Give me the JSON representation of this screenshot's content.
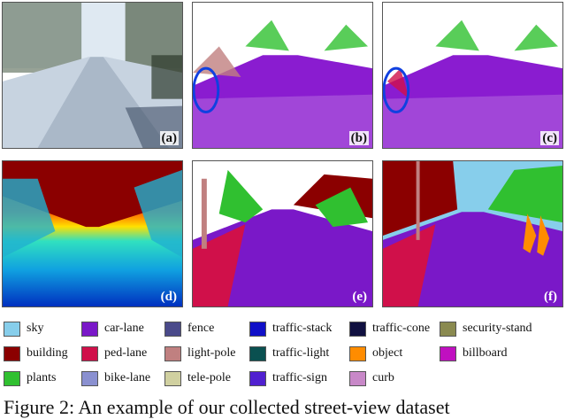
{
  "panels": [
    {
      "id": "a",
      "tag": "(a)"
    },
    {
      "id": "b",
      "tag": "(b)"
    },
    {
      "id": "c",
      "tag": "(c)"
    },
    {
      "id": "d",
      "tag": "(d)"
    },
    {
      "id": "e",
      "tag": "(e)"
    },
    {
      "id": "f",
      "tag": "(f)"
    }
  ],
  "legend": {
    "items": [
      {
        "label": "sky",
        "color": "#87ceeb"
      },
      {
        "label": "car-lane",
        "color": "#7a18c8"
      },
      {
        "label": "fence",
        "color": "#4a4a8a"
      },
      {
        "label": "traffic-stack",
        "color": "#1010c8"
      },
      {
        "label": "traffic-cone",
        "color": "#101040"
      },
      {
        "label": "security-stand",
        "color": "#8a8a50"
      },
      {
        "label": "building",
        "color": "#8b0000"
      },
      {
        "label": "ped-lane",
        "color": "#d0104a"
      },
      {
        "label": "light-pole",
        "color": "#c08080"
      },
      {
        "label": "traffic-light",
        "color": "#0a5050"
      },
      {
        "label": "object",
        "color": "#ff8c00"
      },
      {
        "label": "billboard",
        "color": "#c010c0"
      },
      {
        "label": "plants",
        "color": "#30c030"
      },
      {
        "label": "bike-lane",
        "color": "#8a90d0"
      },
      {
        "label": "tele-pole",
        "color": "#d0d0a0"
      },
      {
        "label": "traffic-sign",
        "color": "#5020d0"
      },
      {
        "label": "curb",
        "color": "#c888c8"
      }
    ]
  },
  "caption": "Figure 2:  An example of our collected street-view dataset"
}
